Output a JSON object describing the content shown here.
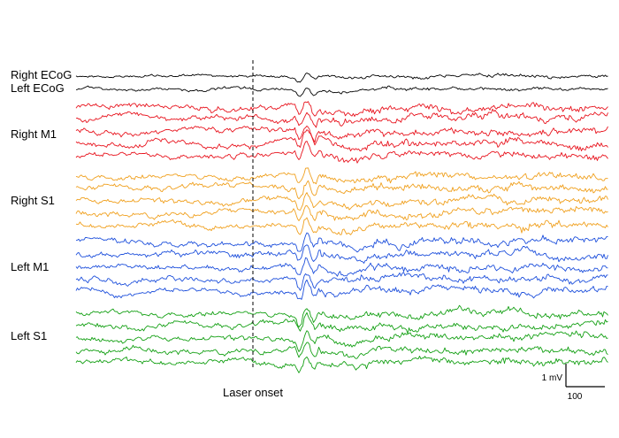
{
  "chart_data": {
    "type": "line",
    "title": "",
    "xlabel": "",
    "ylabel": "",
    "groups": [
      {
        "name": "Right ECoG",
        "color": "#000000",
        "channels": 1
      },
      {
        "name": "Left ECoG",
        "color": "#000000",
        "channels": 1
      },
      {
        "name": "Right M1",
        "color": "#e8141e",
        "channels": 5
      },
      {
        "name": "Right S1",
        "color": "#f0a01e",
        "channels": 5
      },
      {
        "name": "Left M1",
        "color": "#1e50dc",
        "channels": 5
      },
      {
        "name": "Left S1",
        "color": "#14a014",
        "channels": 5
      }
    ],
    "event_marker": {
      "label": "Laser onset",
      "style": "dashed"
    },
    "scale_bar": {
      "amplitude_label": "1 mV",
      "time_label": "100"
    }
  }
}
